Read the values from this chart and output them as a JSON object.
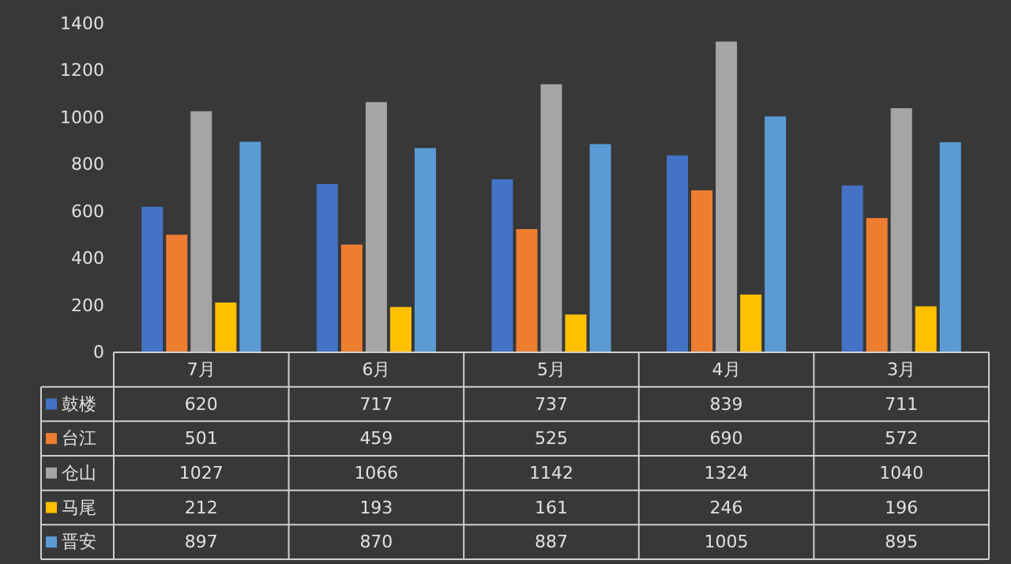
{
  "chart_data": {
    "type": "bar",
    "categories": [
      "7月",
      "6月",
      "5月",
      "4月",
      "3月"
    ],
    "series": [
      {
        "name": "鼓楼",
        "color": "#4472c4",
        "values": [
          620,
          717,
          737,
          839,
          711
        ]
      },
      {
        "name": "台江",
        "color": "#ed7d31",
        "values": [
          501,
          459,
          525,
          690,
          572
        ]
      },
      {
        "name": "仓山",
        "color": "#a5a5a5",
        "values": [
          1027,
          1066,
          1142,
          1324,
          1040
        ]
      },
      {
        "name": "马尾",
        "color": "#ffc000",
        "values": [
          212,
          193,
          161,
          246,
          196
        ]
      },
      {
        "name": "晋安",
        "color": "#5b9bd5",
        "values": [
          897,
          870,
          887,
          1005,
          895
        ]
      }
    ],
    "ylim": [
      0,
      1400
    ],
    "yticks": [
      0,
      200,
      400,
      600,
      800,
      1000,
      1200,
      1400
    ],
    "data_labels": true,
    "legend": "bottom"
  }
}
